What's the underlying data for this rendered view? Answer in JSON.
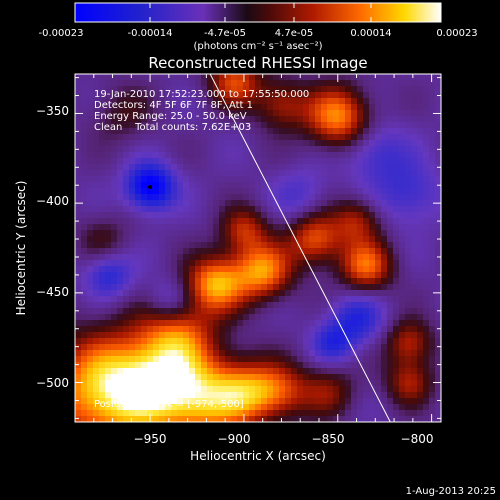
{
  "colorbar": {
    "ticks": [
      "-0.00023",
      "-0.00014",
      "-4.7e-05",
      "4.7e-05",
      "0.00014",
      "0.00023"
    ],
    "unit_label": "(photons cm⁻² s⁻¹ asec⁻²)"
  },
  "chart_data": {
    "type": "heatmap",
    "title": "Reconstructed RHESSI Image",
    "xlabel": "Heliocentric X (arcsec)",
    "ylabel": "Heliocentric Y (arcsec)",
    "xlim": [
      -990,
      -795
    ],
    "ylim": [
      -522,
      -328
    ],
    "x_ticks": [
      -950,
      -900,
      -850,
      -800
    ],
    "y_ticks": [
      -350,
      -400,
      -450,
      -500
    ],
    "x_tick_labels": [
      "−950",
      "−900",
      "−850",
      "−800"
    ],
    "y_tick_labels": [
      "−350",
      "−400",
      "−450",
      "−500"
    ],
    "value_range": [
      -0.00023,
      0.00023
    ],
    "annotations": [
      "19-Jan-2010 17:52:23.000 to 17:55:50.000",
      "Detectors: 4F 5F 6F 7F 8F, Att 1",
      "Energy Range: 25.0 - 50.0 keV",
      "Clean    Total counts: 7.62E+03"
    ],
    "peak_label": "Position of Peak = [-974,-500]",
    "peak_position": [
      -974,
      -500
    ],
    "min_marker": [
      -950,
      -391
    ],
    "limb_line": [
      [
        -918,
        -328
      ],
      [
        -822,
        -522
      ]
    ],
    "blobs": [
      {
        "x": -975,
        "y": -505,
        "a": 1.0,
        "s": 22
      },
      {
        "x": -945,
        "y": -500,
        "a": 0.8,
        "s": 18
      },
      {
        "x": -920,
        "y": -510,
        "a": 0.75,
        "s": 16
      },
      {
        "x": -898,
        "y": -505,
        "a": 0.65,
        "s": 12
      },
      {
        "x": -935,
        "y": -472,
        "a": 0.6,
        "s": 14
      },
      {
        "x": -915,
        "y": -445,
        "a": 0.9,
        "s": 11
      },
      {
        "x": -890,
        "y": -438,
        "a": 0.85,
        "s": 11
      },
      {
        "x": -900,
        "y": -415,
        "a": 0.55,
        "s": 9
      },
      {
        "x": -862,
        "y": -420,
        "a": 0.7,
        "s": 10
      },
      {
        "x": -835,
        "y": -435,
        "a": 0.75,
        "s": 10
      },
      {
        "x": -840,
        "y": -410,
        "a": 0.5,
        "s": 9
      },
      {
        "x": -850,
        "y": -352,
        "a": 0.85,
        "s": 12
      },
      {
        "x": -880,
        "y": -345,
        "a": 0.5,
        "s": 10
      },
      {
        "x": -905,
        "y": -332,
        "a": 0.65,
        "s": 10
      },
      {
        "x": -880,
        "y": -505,
        "a": 0.55,
        "s": 11
      },
      {
        "x": -855,
        "y": -505,
        "a": 0.4,
        "s": 10
      },
      {
        "x": -812,
        "y": -478,
        "a": 0.55,
        "s": 9
      },
      {
        "x": -812,
        "y": -500,
        "a": 0.5,
        "s": 9
      },
      {
        "x": -965,
        "y": -350,
        "a": 0.25,
        "s": 12
      },
      {
        "x": -975,
        "y": -420,
        "a": 0.25,
        "s": 10
      },
      {
        "x": -950,
        "y": -391,
        "a": -0.85,
        "s": 9
      },
      {
        "x": -972,
        "y": -440,
        "a": -0.45,
        "s": 9
      },
      {
        "x": -940,
        "y": -455,
        "a": -0.35,
        "s": 9
      },
      {
        "x": -830,
        "y": -372,
        "a": -0.35,
        "s": 12
      },
      {
        "x": -840,
        "y": -465,
        "a": -0.45,
        "s": 10
      },
      {
        "x": -812,
        "y": -395,
        "a": -0.35,
        "s": 12
      },
      {
        "x": -853,
        "y": -478,
        "a": -0.4,
        "s": 8
      },
      {
        "x": -870,
        "y": -395,
        "a": -0.25,
        "s": 10
      }
    ]
  },
  "timestamp": "1-Aug-2013 20:25"
}
